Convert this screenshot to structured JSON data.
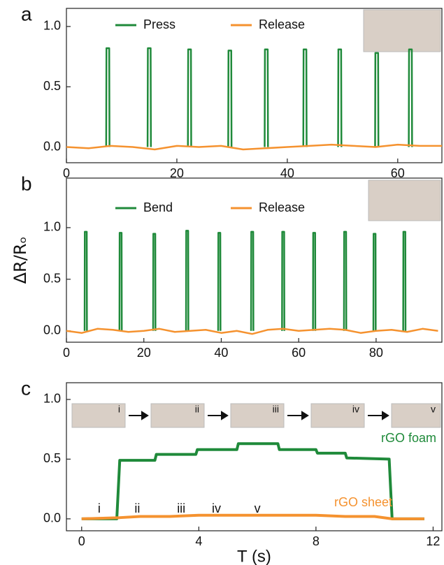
{
  "chart_data": [
    {
      "type": "line",
      "panel": "a",
      "xlim": [
        0,
        68
      ],
      "ylim": [
        -0.13,
        1.15
      ],
      "xticks": [
        0,
        20,
        40,
        60
      ],
      "yticks": [
        {
          "value": 0,
          "label": "0.0"
        },
        {
          "value": 0.5,
          "label": "0.5"
        },
        {
          "value": 1,
          "label": "1.0"
        }
      ],
      "series": [
        {
          "name": "Press",
          "color": "#1f8a3a",
          "x": [
            7.2,
            7.25,
            7.75,
            7.8,
            7.8,
            14.7,
            14.75,
            15.25,
            15.3,
            15.3,
            22.0,
            22.05,
            22.55,
            22.6,
            22.6,
            29.3,
            29.35,
            29.85,
            29.9,
            29.9,
            35.9,
            35.95,
            36.45,
            36.5,
            36.5,
            42.9,
            42.95,
            43.45,
            43.5,
            43.5,
            49.2,
            49.25,
            49.75,
            49.8,
            49.8,
            55.9,
            55.95,
            56.45,
            56.5,
            56.5,
            62.0,
            62.05,
            62.55,
            62.6
          ],
          "values": [
            0,
            0.82,
            0.82,
            0,
            null,
            0,
            0.82,
            0.82,
            0,
            null,
            0,
            0.81,
            0.81,
            0,
            null,
            0,
            0.8,
            0.8,
            0,
            null,
            0,
            0.81,
            0.81,
            0,
            null,
            0,
            0.81,
            0.81,
            0,
            null,
            0,
            0.81,
            0.81,
            0,
            null,
            0,
            0.78,
            0.78,
            0,
            null,
            0,
            0.81,
            0.81,
            0
          ]
        },
        {
          "name": "Release",
          "color": "#f5922f",
          "x": [
            0,
            4,
            8,
            12,
            16,
            20,
            24,
            28,
            32,
            36,
            40,
            44,
            48,
            52,
            56,
            60,
            64,
            68
          ],
          "values": [
            0,
            -0.01,
            0.01,
            0,
            -0.02,
            0.01,
            0,
            0.01,
            -0.02,
            -0.01,
            0,
            0.01,
            0.02,
            0.01,
            0,
            0.02,
            0.01,
            0.01
          ]
        }
      ]
    },
    {
      "type": "line",
      "panel": "b",
      "ylabel": "ΔR/Rₒ",
      "xlim": [
        0,
        97
      ],
      "ylim": [
        -0.11,
        1.48
      ],
      "xticks": [
        0,
        20,
        40,
        60,
        80
      ],
      "yticks": [
        {
          "value": 0,
          "label": "0.0"
        },
        {
          "value": 0.5,
          "label": "0.5"
        },
        {
          "value": 1,
          "label": "1.0"
        }
      ],
      "series": [
        {
          "name": "Bend",
          "color": "#1f8a3a",
          "x": [
            4.7,
            4.75,
            5.25,
            5.3,
            5.3,
            13.7,
            13.75,
            14.25,
            14.3,
            14.3,
            22.4,
            22.45,
            22.95,
            23.0,
            23.0,
            30.9,
            30.95,
            31.45,
            31.5,
            31.5,
            39.2,
            39.25,
            39.75,
            39.8,
            39.8,
            47.7,
            47.75,
            48.25,
            48.3,
            48.3,
            55.7,
            55.75,
            56.25,
            56.3,
            56.3,
            63.7,
            63.75,
            64.25,
            64.3,
            64.3,
            71.7,
            71.75,
            72.25,
            72.3,
            72.3,
            79.3,
            79.35,
            79.85,
            79.9,
            79.9,
            87.0,
            87.05,
            87.55,
            87.6
          ],
          "values": [
            0,
            0.96,
            0.96,
            0,
            null,
            0,
            0.95,
            0.95,
            0,
            null,
            0,
            0.94,
            0.94,
            0,
            null,
            0,
            0.97,
            0.97,
            0,
            null,
            0,
            0.95,
            0.95,
            0,
            null,
            0,
            0.96,
            0.96,
            0,
            null,
            0,
            0.96,
            0.96,
            0,
            null,
            0,
            0.95,
            0.95,
            0,
            null,
            0,
            0.96,
            0.96,
            0,
            null,
            0,
            0.94,
            0.94,
            0,
            null,
            0,
            0.96,
            0.96,
            0
          ]
        },
        {
          "name": "Release",
          "color": "#f5922f",
          "x": [
            0,
            4,
            8,
            12,
            16,
            20,
            24,
            28,
            32,
            36,
            40,
            44,
            48,
            52,
            56,
            60,
            64,
            68,
            72,
            76,
            80,
            84,
            88,
            92,
            96
          ],
          "values": [
            0,
            -0.02,
            0.02,
            0.01,
            -0.01,
            0,
            0.02,
            -0.01,
            0,
            0.01,
            -0.02,
            0,
            -0.03,
            0.01,
            0.02,
            0,
            0.01,
            0.02,
            0.01,
            -0.02,
            0,
            0.01,
            -0.01,
            0.02,
            0
          ]
        }
      ]
    },
    {
      "type": "line",
      "panel": "c",
      "xlabel": "T (s)",
      "xlim": [
        -0.52,
        12.3
      ],
      "ylim": [
        -0.1,
        1.14
      ],
      "xticks": [
        0,
        4,
        8,
        12
      ],
      "yticks": [
        {
          "value": 0,
          "label": "0.0"
        },
        {
          "value": 0.5,
          "label": "0.5"
        },
        {
          "value": 1,
          "label": "1.0"
        }
      ],
      "annotations": [
        "i",
        "ii",
        "iii",
        "iv",
        "v"
      ],
      "inset_labels": [
        "i",
        "ii",
        "iii",
        "iv",
        "v"
      ],
      "series": [
        {
          "name": "rGO foam",
          "color": "#1f8a3a",
          "x": [
            0,
            1.2,
            1.3,
            2.5,
            2.55,
            3.9,
            3.95,
            5.3,
            5.35,
            6.7,
            6.75,
            8,
            8.05,
            9,
            9.05,
            10.5,
            10.6,
            11.7
          ],
          "values": [
            0,
            0,
            0.49,
            0.49,
            0.54,
            0.54,
            0.58,
            0.58,
            0.63,
            0.63,
            0.58,
            0.58,
            0.55,
            0.55,
            0.51,
            0.5,
            0,
            0
          ]
        },
        {
          "name": "rGO sheet",
          "color": "#f5922f",
          "x": [
            0,
            1.3,
            2,
            3,
            4,
            5,
            6,
            7,
            8,
            9,
            10,
            10.6,
            11.7
          ],
          "values": [
            0,
            0.01,
            0.02,
            0.02,
            0.03,
            0.03,
            0.03,
            0.03,
            0.03,
            0.02,
            0.02,
            0,
            0
          ]
        }
      ]
    }
  ]
}
